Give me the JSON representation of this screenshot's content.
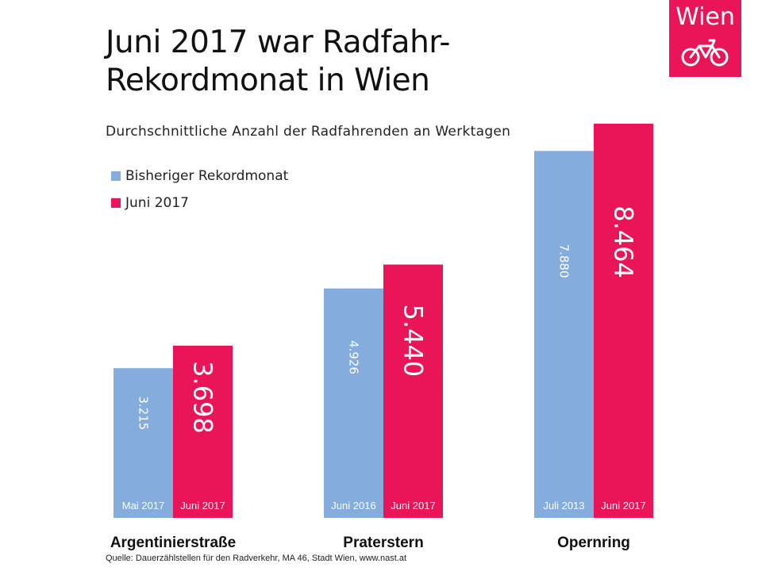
{
  "title_line1": "Juni 2017 war Radfahr-",
  "title_line2": "Rekordmonat in Wien",
  "subtitle": "Durchschnittliche Anzahl der Radfahrenden an Werktagen",
  "legend": [
    {
      "label": "Bisheriger Rekordmonat",
      "color": "#84acdd"
    },
    {
      "label": "Juni 2017",
      "color": "#ea1558"
    }
  ],
  "logo": {
    "text": "Wien",
    "icon": "bicycle-icon",
    "color": "#ea1558"
  },
  "source": "Quelle: Dauerzählstellen für den Radverkehr, MA 46, Stadt Wien, www.nast.at",
  "chart_data": {
    "type": "bar",
    "categories": [
      "Argentinierstraße",
      "Praterstern",
      "Opernring"
    ],
    "series": [
      {
        "name": "Bisheriger Rekordmonat",
        "color": "#84acdd",
        "values": [
          3215,
          4926,
          7880
        ],
        "value_labels": [
          "3.215",
          "4.926",
          "7.880"
        ],
        "period_labels": [
          "Mai 2017",
          "Juni 2016",
          "Juli 2013"
        ]
      },
      {
        "name": "Juni 2017",
        "color": "#ea1558",
        "values": [
          3698,
          5440,
          8464
        ],
        "value_labels": [
          "3.698",
          "5.440",
          "8.464"
        ],
        "period_labels": [
          "Juni 2017",
          "Juni 2017",
          "Juni 2017"
        ]
      }
    ],
    "ylim": [
      0,
      8464
    ],
    "grid": false,
    "legend_position": "top-left"
  }
}
